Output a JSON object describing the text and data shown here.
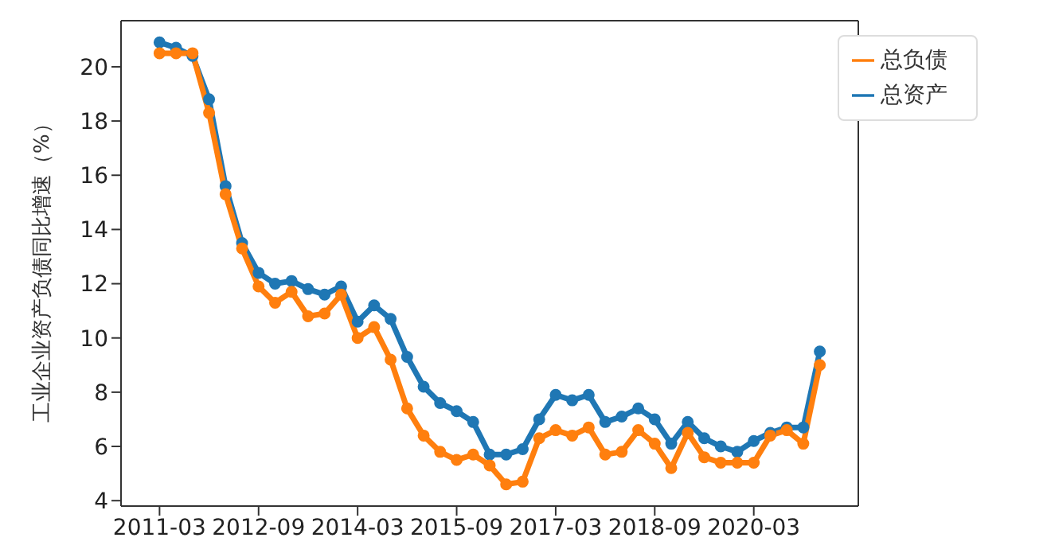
{
  "chart_data": {
    "type": "line",
    "ylabel": "工业企业资产负债同比增速（%）",
    "x": [
      "2011-03",
      "2011-06",
      "2011-09",
      "2011-12",
      "2012-03",
      "2012-06",
      "2012-09",
      "2012-12",
      "2013-03",
      "2013-06",
      "2013-09",
      "2013-12",
      "2014-03",
      "2014-06",
      "2014-09",
      "2014-12",
      "2015-03",
      "2015-06",
      "2015-09",
      "2015-12",
      "2016-03",
      "2016-06",
      "2016-09",
      "2016-12",
      "2017-03",
      "2017-06",
      "2017-09",
      "2017-12",
      "2018-03",
      "2018-06",
      "2018-09",
      "2018-12",
      "2019-03",
      "2019-06",
      "2019-09",
      "2019-12",
      "2020-03",
      "2020-06",
      "2020-09",
      "2020-12",
      "2021-03"
    ],
    "series": [
      {
        "name": "总资产",
        "color": "#1f77b4",
        "values": [
          20.9,
          20.7,
          20.4,
          18.8,
          15.6,
          13.5,
          12.4,
          12.0,
          12.1,
          11.8,
          11.6,
          11.9,
          10.6,
          11.2,
          10.7,
          9.3,
          8.2,
          7.6,
          7.3,
          6.9,
          5.7,
          5.7,
          5.9,
          7.0,
          7.9,
          7.7,
          7.9,
          6.9,
          7.1,
          7.4,
          7.0,
          6.1,
          6.9,
          6.3,
          6.0,
          5.8,
          6.2,
          6.5,
          6.7,
          6.7,
          9.5
        ]
      },
      {
        "name": "总负债",
        "color": "#ff7f0e",
        "values": [
          20.5,
          20.5,
          20.5,
          18.3,
          15.3,
          13.3,
          11.9,
          11.3,
          11.7,
          10.8,
          10.9,
          11.6,
          10.0,
          10.4,
          9.2,
          7.4,
          6.4,
          5.8,
          5.5,
          5.7,
          5.3,
          4.6,
          4.7,
          6.3,
          6.6,
          6.4,
          6.7,
          5.7,
          5.8,
          6.6,
          6.1,
          5.2,
          6.5,
          5.6,
          5.4,
          5.4,
          5.4,
          6.4,
          6.6,
          6.1,
          9.0
        ]
      }
    ],
    "xlim": [
      "2010-08",
      "2021-10"
    ],
    "xticks": [
      {
        "value": "2011-03",
        "label": "2011-03"
      },
      {
        "value": "2012-09",
        "label": "2012-09"
      },
      {
        "value": "2014-03",
        "label": "2014-03"
      },
      {
        "value": "2015-09",
        "label": "2015-09"
      },
      {
        "value": "2017-03",
        "label": "2017-03"
      },
      {
        "value": "2018-09",
        "label": "2018-09"
      },
      {
        "value": "2020-03",
        "label": "2020-03"
      }
    ],
    "ylim": [
      3.8,
      21.7
    ],
    "yticks": [
      4,
      6,
      8,
      10,
      12,
      14,
      16,
      18,
      20
    ],
    "grid": false,
    "legend": "top right",
    "marker": "circle",
    "line_style": "solid"
  }
}
